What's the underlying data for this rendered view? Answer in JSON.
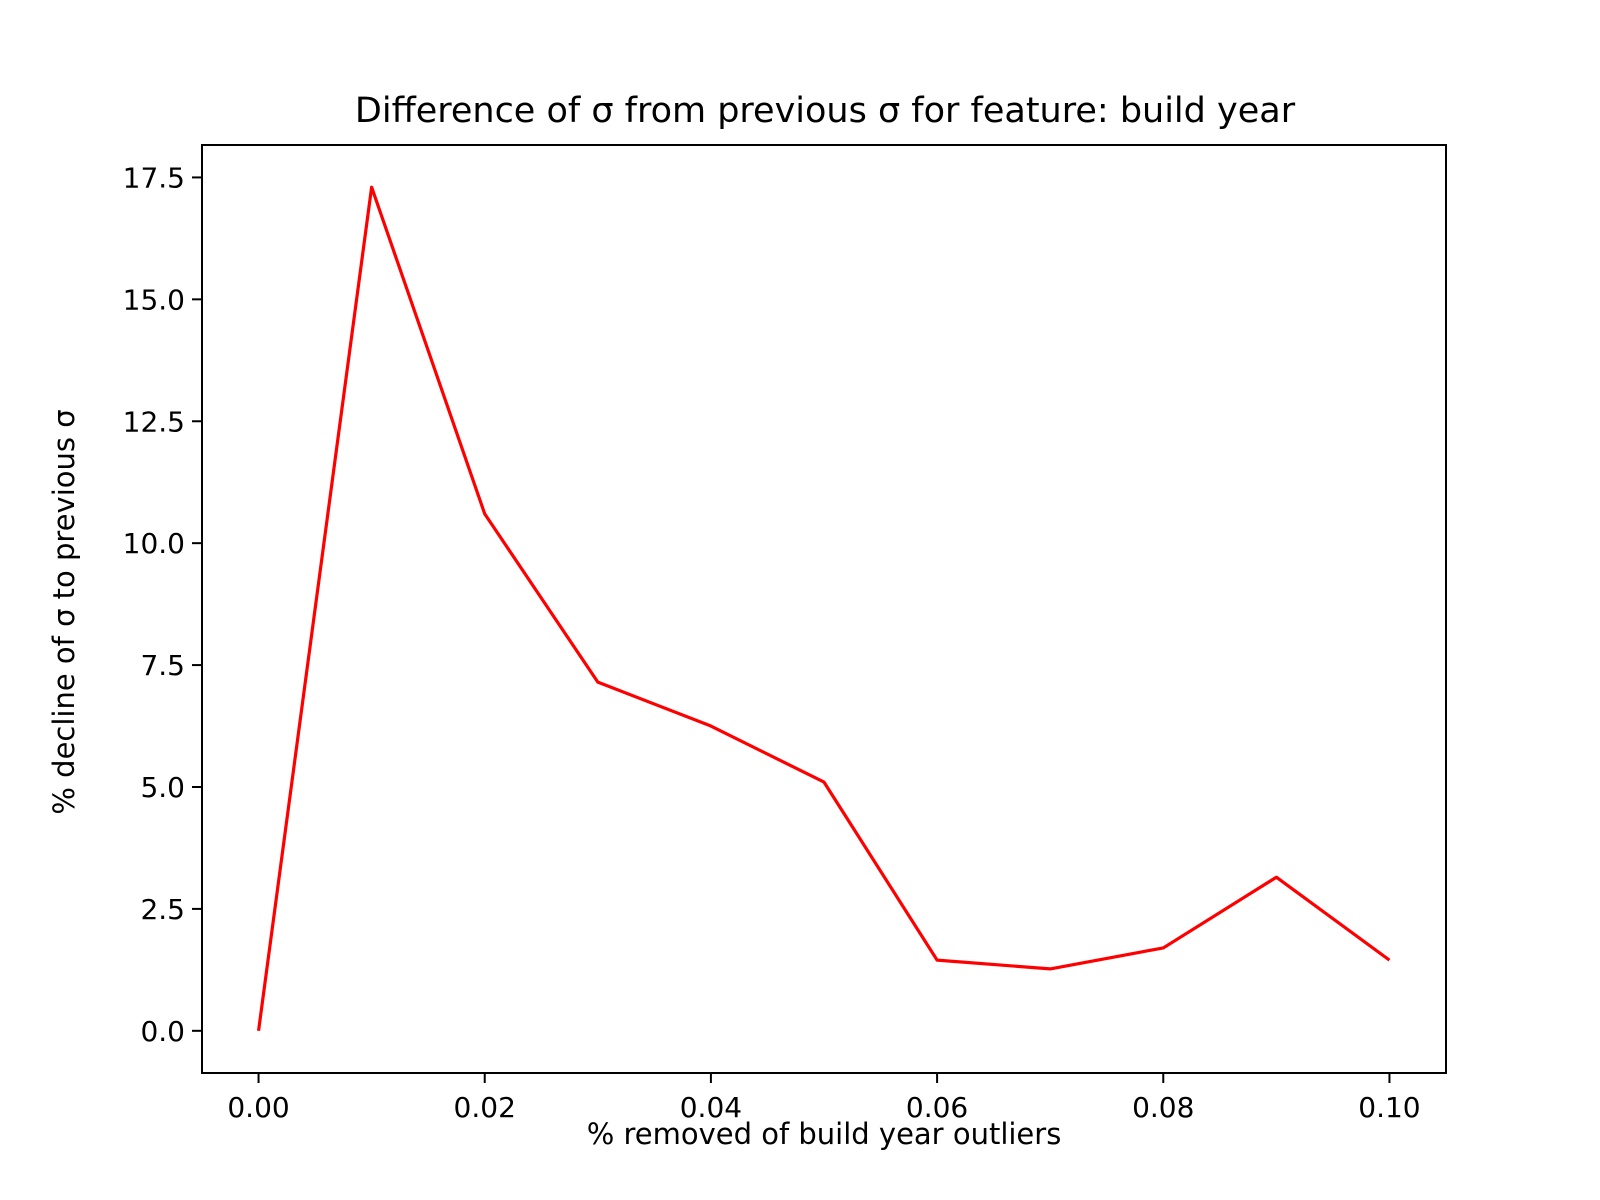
{
  "chart_data": {
    "type": "line",
    "title": "Difference of σ from previous σ for feature: build year",
    "xlabel": "% removed of build year outliers",
    "ylabel": "% decline of σ to previous σ",
    "x": [
      0.0,
      0.01,
      0.02,
      0.03,
      0.04,
      0.05,
      0.06,
      0.07,
      0.08,
      0.09,
      0.1
    ],
    "series": [
      {
        "values": [
          0.0,
          17.3,
          10.6,
          7.15,
          6.25,
          5.1,
          1.45,
          1.27,
          1.7,
          3.15,
          1.45
        ],
        "color": "#ff0000"
      }
    ],
    "xlim": [
      -0.005,
      0.105
    ],
    "ylim": [
      -0.865,
      18.165
    ],
    "xticks": [
      0.0,
      0.02,
      0.04,
      0.06,
      0.08,
      0.1
    ],
    "xtick_labels": [
      "0.00",
      "0.02",
      "0.04",
      "0.06",
      "0.08",
      "0.10"
    ],
    "yticks": [
      0.0,
      2.5,
      5.0,
      7.5,
      10.0,
      12.5,
      15.0,
      17.5
    ],
    "ytick_labels": [
      "0.0",
      "2.5",
      "5.0",
      "7.5",
      "10.0",
      "12.5",
      "15.0",
      "17.5"
    ],
    "grid": false,
    "legend": "none"
  }
}
